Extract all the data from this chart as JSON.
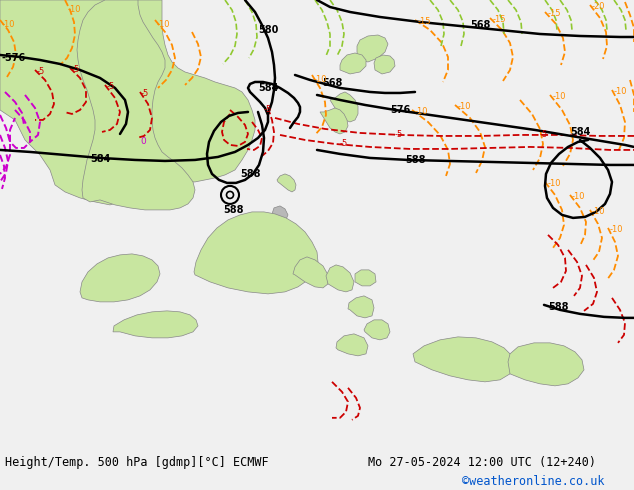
{
  "title_left": "Height/Temp. 500 hPa [gdmp][°C] ECMWF",
  "title_right": "Mo 27-05-2024 12:00 UTC (12+240)",
  "credit": "©weatheronline.co.uk",
  "sea_color": "#d8d8d8",
  "land_green_color": "#c8e6a0",
  "land_gray_color": "#b8b8b8",
  "footer_bg": "#f0f0f0",
  "black_color": "#000000",
  "orange_color": "#ff8c00",
  "red_color": "#cc0000",
  "magenta_color": "#cc00cc",
  "green_color": "#90c830",
  "figsize": [
    6.34,
    4.9
  ],
  "dpi": 100
}
